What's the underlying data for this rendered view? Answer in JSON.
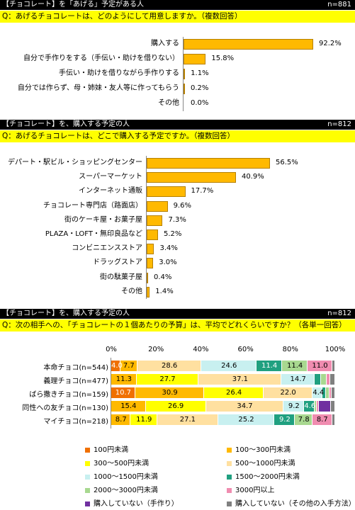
{
  "sections": [
    {
      "header": "【チョコレート】を「あげる」予定がある人",
      "n": "n=881",
      "question": "Q：あげるチョコレートは、どのようにして用意しますか。（複数回答）"
    },
    {
      "header": "【チョコレート】を、購入する予定の人",
      "n": "n=812",
      "question": "Q：あげるチョコレートは、どこで購入する予定ですか。（複数回答）"
    },
    {
      "header": "【チョコレート】を、購入する予定の人",
      "n": "n=812",
      "question": "Q：次の相手への、「チョコレートの１個あたりの予算」は、平均でどれくらいですか？（各単一回答）"
    }
  ],
  "chart_data": [
    {
      "type": "bar",
      "orientation": "horizontal",
      "categories": [
        "購入する",
        "自分で手作りをする（手伝い・助けを借りない）",
        "手伝い・助けを借りながら手作りする",
        "自分では作らず、母・姉妹・友人等に作ってもらう",
        "その他"
      ],
      "values": [
        92.2,
        15.8,
        1.1,
        0.2,
        0.0
      ],
      "value_labels": [
        "92.2%",
        "15.8%",
        "1.1%",
        "0.2%",
        "0.0%"
      ],
      "bar_color": "#ffb900"
    },
    {
      "type": "bar",
      "orientation": "horizontal",
      "categories": [
        "デパート・駅ビル・ショッピングセンター",
        "スーパーマーケット",
        "インターネット通販",
        "チョコレート専門店（路面店）",
        "街のケーキ屋・お菓子屋",
        "PLAZA・LOFT・無印良品など",
        "コンビニエンスストア",
        "ドラッグストア",
        "街の駄菓子屋",
        "その他"
      ],
      "values": [
        56.5,
        40.9,
        17.7,
        9.6,
        7.3,
        5.2,
        3.4,
        3.0,
        0.4,
        1.4
      ],
      "value_labels": [
        "56.5%",
        "40.9%",
        "17.7%",
        "9.6%",
        "7.3%",
        "5.2%",
        "3.4%",
        "3.0%",
        "0.4%",
        "1.4%"
      ],
      "bar_color": "#ffb900"
    },
    {
      "type": "bar",
      "orientation": "horizontal",
      "stacked": true,
      "xlim": [
        0,
        100
      ],
      "ticks": [
        "0%",
        "20%",
        "40%",
        "60%",
        "80%",
        "100%"
      ],
      "categories": [
        "本命チョコ(n=544)",
        "義理チョコ(n=477)",
        "ばら撒きチョコ(n=159)",
        "同性への友チョコ(n=130)",
        "マイチョコ(n=218)"
      ],
      "series": [
        {
          "name": "100円未満",
          "color": "#f07000",
          "values": [
            4.0,
            0.0,
            10.7,
            0.0,
            0.0
          ],
          "labels": [
            "4.0",
            "",
            "10.7",
            "",
            ""
          ]
        },
        {
          "name": "100～300円未満",
          "color": "#ffb900",
          "values": [
            7.7,
            11.3,
            30.9,
            15.4,
            8.7
          ],
          "labels": [
            "7.7",
            "11.3",
            "30.9",
            "15.4",
            "8.7"
          ]
        },
        {
          "name": "300～500円未満",
          "color": "#ffff00",
          "values": [
            0.0,
            27.7,
            26.4,
            26.9,
            11.9
          ],
          "labels": [
            "",
            "27.7",
            "26.4",
            "26.9",
            "11.9"
          ]
        },
        {
          "name": "500～1000円未満",
          "color": "#ffe0a0",
          "values": [
            28.6,
            37.1,
            22.0,
            34.7,
            27.1
          ],
          "labels": [
            "28.6",
            "37.1",
            "22.0",
            "34.7",
            "27.1"
          ]
        },
        {
          "name": "1000～1500円未満",
          "color": "#c8f0f0",
          "values": [
            24.6,
            14.7,
            4.4,
            9.2,
            25.2
          ],
          "labels": [
            "24.6",
            "14.7",
            "4.4",
            "9.2",
            "25.2"
          ]
        },
        {
          "name": "1500～2000円未満",
          "color": "#20a080",
          "values": [
            11.4,
            3.0,
            1.5,
            4.6,
            9.2
          ],
          "labels": [
            "11.4",
            "",
            "",
            "4.6",
            "9.2"
          ]
        },
        {
          "name": "2000～3000円未満",
          "color": "#a8d890",
          "values": [
            11.4,
            2.5,
            1.5,
            1.0,
            7.8
          ],
          "labels": [
            "11.4",
            "",
            "",
            "",
            "7.8"
          ]
        },
        {
          "name": "3000円以上",
          "color": "#f08cb0",
          "values": [
            11.0,
            1.5,
            1.0,
            1.0,
            8.7
          ],
          "labels": [
            "11.0",
            "",
            "",
            "",
            "8.7"
          ]
        },
        {
          "name": "購入していない（手作り）",
          "color": "#7030a0",
          "values": [
            0.0,
            0.0,
            0.0,
            5.4,
            0.0
          ],
          "labels": [
            "",
            "",
            "",
            "",
            ""
          ]
        },
        {
          "name": "購入していない（その他の入手方法）",
          "color": "#808080",
          "values": [
            1.3,
            2.2,
            1.6,
            1.8,
            1.4
          ],
          "labels": [
            "",
            "",
            "",
            "",
            ""
          ]
        }
      ]
    }
  ]
}
